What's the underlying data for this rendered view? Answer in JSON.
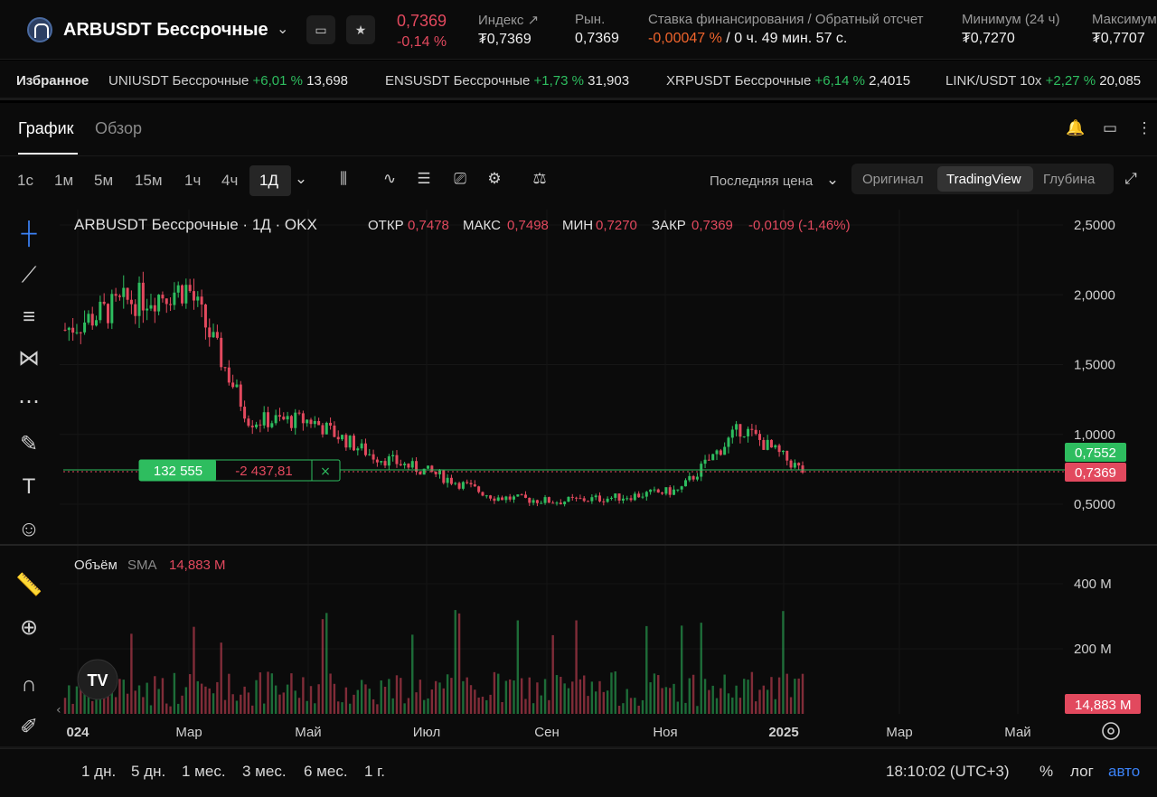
{
  "header": {
    "symbol": "ARBUSDT Бессрочные",
    "price": "0,7369",
    "change": "-0,14 %",
    "index_label": "Индекс",
    "index_value": "₮0,7369",
    "market_label": "Рын.",
    "market_value": "0,7369",
    "funding_label": "Ставка финансирования / Обратный отсчет",
    "funding_rate": "-0,00047 %",
    "funding_countdown": "/ 0 ч. 49 мин. 57 с.",
    "low_label": "Минимум (24 ч)",
    "low_value": "₮0,7270",
    "high_label": "Максимум",
    "high_value": "₮0,7707"
  },
  "favorites": {
    "label": "Избранное",
    "items": [
      {
        "name": "UNIUSDT Бессрочные",
        "change": "+6,01 %",
        "price": "13,698"
      },
      {
        "name": "ENSUSDT Бессрочные",
        "change": "+1,73 %",
        "price": "31,903"
      },
      {
        "name": "XRPUSDT Бессрочные",
        "change": "+6,14 %",
        "price": "2,4015"
      },
      {
        "name": "LINK/USDT 10x",
        "change": "+2,27 %",
        "price": "20,085"
      }
    ]
  },
  "tabs": {
    "chart": "График",
    "overview": "Обзор"
  },
  "timeframes": [
    "1с",
    "1м",
    "5м",
    "15м",
    "1ч",
    "4ч",
    "1Д"
  ],
  "price_source": "Последняя цена",
  "views": {
    "original": "Оригинал",
    "tradingview": "TradingView",
    "depth": "Глубина"
  },
  "legend": {
    "title": "ARBUSDT Бессрочные · 1Д · OKX",
    "open_label": "ОТКР",
    "open": "0,7478",
    "high_label": "МАКС",
    "high": "0,7498",
    "low_label": "МИН",
    "low": "0,7270",
    "close_label": "ЗАКР",
    "close": "0,7369",
    "change": "-0,0109 (-1,46%)"
  },
  "volume": {
    "label": "Объём",
    "sma_label": "SMA",
    "sma_value": "14,883 M"
  },
  "position": {
    "qty": "132 555",
    "pnl": "-2 437,81"
  },
  "price_tags": {
    "mark": "0,7552",
    "last": "0,7369",
    "volume": "14,883 M"
  },
  "footer": {
    "ranges": [
      "1 дн.",
      "5 дн.",
      "1 мес.",
      "3 мес.",
      "6 мес.",
      "1 г."
    ],
    "time": "18:10:02 (UTC+3)",
    "percent": "%",
    "log": "лог",
    "auto": "авто"
  },
  "chart_data": {
    "type": "candlestick",
    "price_axis": {
      "ticks": [
        "2,5000",
        "2,0000",
        "1,5000",
        "1,0000",
        "0,5000"
      ],
      "ylim": [
        0.5,
        2.5
      ]
    },
    "volume_axis": {
      "ticks": [
        "400 M",
        "200 M"
      ]
    },
    "time_axis": {
      "ticks": [
        "024",
        "Мар",
        "Май",
        "Июл",
        "Сен",
        "Ноя",
        "2025",
        "Мар",
        "Май"
      ]
    },
    "close_series": [
      {
        "x": "Янв 2024",
        "y": 1.75
      },
      {
        "x": "Фев 2024",
        "y": 1.95
      },
      {
        "x": "Мар 2024",
        "y": 2.05
      },
      {
        "x": "Апр 2024",
        "y": 1.1
      },
      {
        "x": "Май 2024",
        "y": 1.1
      },
      {
        "x": "Июн 2024",
        "y": 0.85
      },
      {
        "x": "Июл 2024",
        "y": 0.72
      },
      {
        "x": "Авг 2024",
        "y": 0.55
      },
      {
        "x": "Сен 2024",
        "y": 0.52
      },
      {
        "x": "Окт 2024",
        "y": 0.55
      },
      {
        "x": "Ноя 2024",
        "y": 0.6
      },
      {
        "x": "Дек 2024",
        "y": 1.05
      },
      {
        "x": "Янв 2025",
        "y": 0.7369
      }
    ]
  }
}
